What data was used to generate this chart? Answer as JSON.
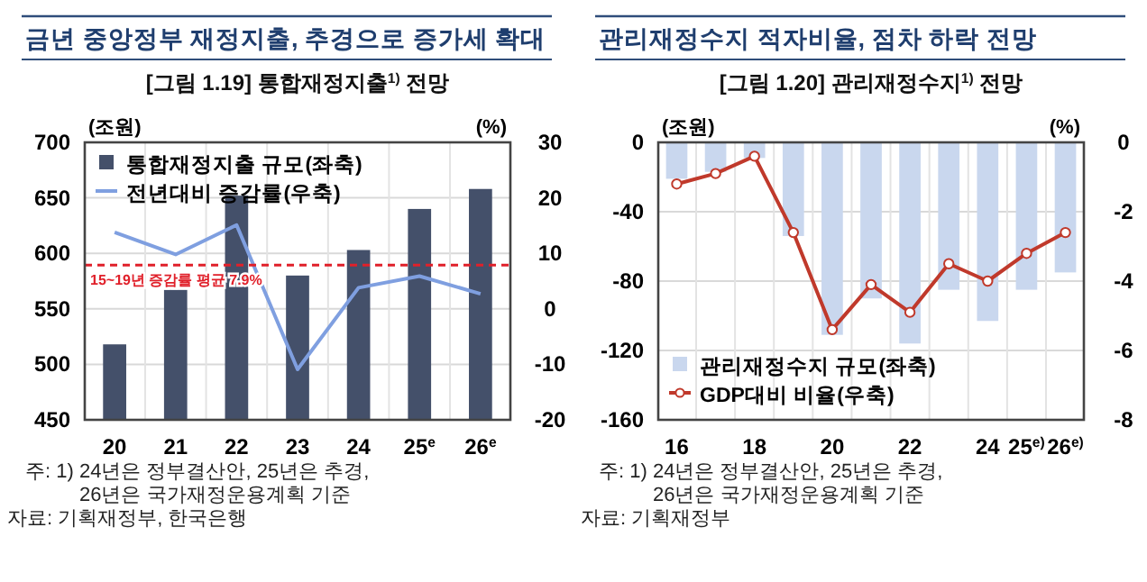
{
  "chart_data": [
    {
      "type": "bar",
      "title": "금년 중앙정부 재정지출, 추경으로 증가세 확대",
      "subtitle": "[그림 1.19] 통합재정지출$^{1)}$ 전망",
      "ylabel": "(조원)",
      "y2label": "(%)",
      "categories": [
        "20",
        "21",
        "22",
        "23",
        "24",
        "25$^{e}$",
        "26$^{e}$"
      ],
      "series": [
        {
          "name": "통합재정지출 규모(좌축)",
          "color": "#44506a",
          "values": [
            518,
            567,
            652,
            580,
            603,
            640,
            658
          ]
        },
        {
          "name": "전년대비 증감률(우축)",
          "type": "line",
          "axis": "y2",
          "color": "#7f9fe0",
          "values": [
            13.8,
            9.8,
            15.1,
            -10.9,
            3.8,
            5.9,
            2.7
          ]
        }
      ],
      "ylim": [
        450,
        700
      ],
      "yticks": [
        450,
        500,
        550,
        600,
        650,
        700
      ],
      "y2lim": [
        -20,
        30
      ],
      "y2ticks": [
        -20,
        -10,
        0,
        10,
        20,
        30
      ],
      "ref_lines": [
        {
          "axis": "y2",
          "value": 7.9,
          "label": "15~19년 증감률 평균 7.9%",
          "color": "#e0202a",
          "line_style": "dashed"
        }
      ],
      "grid": true,
      "legend": "top left",
      "annotations": [
        "주: 1) 24년은 정부결산안, 25년은 추경,",
        "26년은 국가재정운용계획 기준",
        "자료: 기획재정부, 한국은행"
      ]
    },
    {
      "type": "bar",
      "title": "관리재정수지 적자비율, 점차 하락 전망",
      "subtitle": "[그림 1.20] 관리재정수지$^{1)}$ 전망",
      "ylabel": "(조원)",
      "y2label": "(%)",
      "categories": [
        "16",
        null,
        "18",
        null,
        "20",
        null,
        "22",
        null,
        "24",
        "25$^{e)}$",
        "26$^{e)}$"
      ],
      "series": [
        {
          "name": "관리재정수지 규모(좌축)",
          "color": "#c9d7ee",
          "values": [
            -21,
            -17,
            -9,
            -54,
            -111,
            -90,
            -116,
            -85,
            -103,
            -85,
            -75
          ]
        },
        {
          "name": "GDP대비 비율(우축)",
          "type": "line",
          "axis": "y2",
          "color": "#c0392b",
          "marker": "circle",
          "values": [
            -1.2,
            -0.9,
            -0.4,
            -2.6,
            -5.4,
            -4.1,
            -4.9,
            -3.5,
            -4.0,
            -3.2,
            -2.6
          ]
        }
      ],
      "ylim": [
        -160,
        0
      ],
      "yticks": [
        -160,
        -120,
        -80,
        -40,
        0
      ],
      "y2lim": [
        -8,
        0
      ],
      "y2ticks": [
        -8,
        -6,
        -4,
        -2,
        0
      ],
      "grid": true,
      "legend": "bottom left",
      "annotations": [
        "주: 1) 24년은 정부결산안, 25년은 추경,",
        "26년은 국가재정운용계획 기준",
        "자료: 기획재정부"
      ]
    }
  ]
}
